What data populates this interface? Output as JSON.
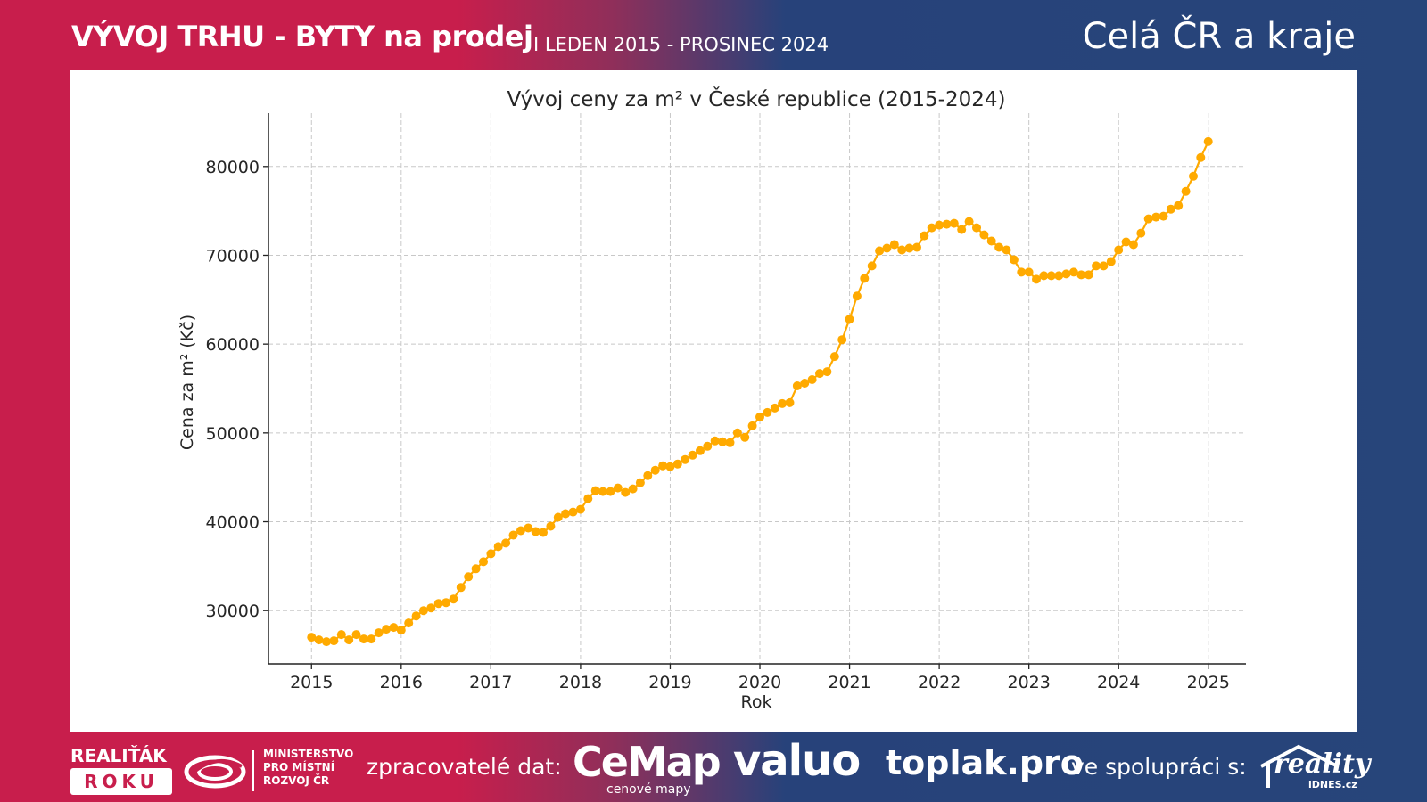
{
  "header": {
    "title_main": "VÝVOJ TRHU - BYTY na prodej",
    "title_sub": "I LEDEN 2015 - PROSINEC 2024",
    "title_region": "Celá ČR a kraje"
  },
  "footer": {
    "realitak_top": "REALIŤÁK",
    "realitak_bottom": "ROKU",
    "ministry_line1": "MINISTERSTVO",
    "ministry_line2": "PRO MÍSTNÍ",
    "ministry_line3": "ROZVOJ ČR",
    "processors_label": "zpracovatelé dat:",
    "cemap_name": "CeMap",
    "cemap_sub": "cenové mapy",
    "valuo_name": "valuo",
    "toplak_name": "toplak.pro",
    "collab_label": "ve spolupráci s:",
    "reality_name": "reality",
    "reality_sub": "iDNES.cz"
  },
  "colors": {
    "line": "#FFAA00",
    "brand_red": "#C81E4C",
    "brand_blue": "#27457A"
  },
  "chart_data": {
    "type": "line",
    "title": "Vývoj ceny za m² v České republice (2015-2024)",
    "xlabel": "Rok",
    "ylabel": "Cena za m² (Kč)",
    "xlim": [
      2014.52,
      2025.42
    ],
    "ylim": [
      24000,
      86000
    ],
    "x_ticks": [
      2015,
      2016,
      2017,
      2018,
      2019,
      2020,
      2021,
      2022,
      2023,
      2024,
      2025
    ],
    "y_ticks": [
      30000,
      40000,
      50000,
      60000,
      70000,
      80000
    ],
    "grid": true,
    "legend": "none",
    "x_start": 2015,
    "x_step": 0.08333,
    "values": [
      27000,
      26700,
      26500,
      26600,
      27300,
      26700,
      27300,
      26800,
      26800,
      27500,
      27900,
      28100,
      27800,
      28600,
      29400,
      30000,
      30300,
      30800,
      30900,
      31300,
      32600,
      33800,
      34700,
      35500,
      36400,
      37200,
      37600,
      38500,
      39000,
      39300,
      38900,
      38800,
      39500,
      40500,
      40900,
      41100,
      41400,
      42600,
      43500,
      43400,
      43400,
      43800,
      43300,
      43700,
      44400,
      45200,
      45800,
      46300,
      46200,
      46500,
      47000,
      47500,
      48000,
      48500,
      49100,
      49000,
      48900,
      50000,
      49500,
      50800,
      51800,
      52300,
      52800,
      53300,
      53400,
      55300,
      55600,
      56000,
      56700,
      56900,
      58600,
      60500,
      62800,
      65400,
      67400,
      68800,
      70500,
      70800,
      71200,
      70600,
      70800,
      70900,
      72200,
      73100,
      73400,
      73500,
      73600,
      72900,
      73800,
      73100,
      72300,
      71600,
      70900,
      70600,
      69500,
      68100,
      68100,
      67300,
      67700,
      67700,
      67700,
      67900,
      68100,
      67800,
      67800,
      68800,
      68800,
      69300,
      70600,
      71500,
      71200,
      72500,
      74100,
      74300,
      74400,
      75200,
      75600,
      77200,
      78900,
      81000,
      82800
    ]
  }
}
